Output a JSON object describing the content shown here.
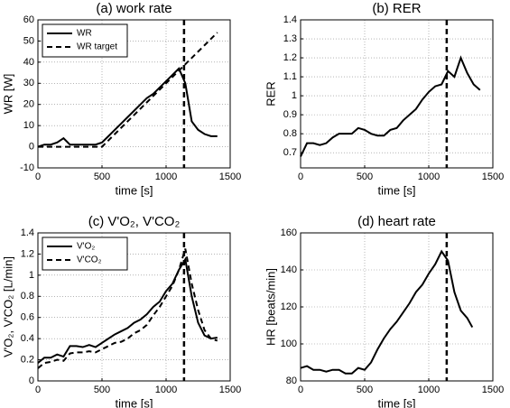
{
  "chart_data": [
    {
      "type": "line",
      "title": "(a)  work rate",
      "xlabel": "time [s]",
      "ylabel": "WR [W]",
      "x": [
        0,
        50,
        100,
        150,
        200,
        250,
        300,
        350,
        400,
        450,
        500,
        550,
        600,
        650,
        700,
        750,
        800,
        850,
        900,
        950,
        1000,
        1050,
        1100,
        1150,
        1200,
        1250,
        1300,
        1350,
        1400
      ],
      "series": [
        {
          "name": "WR",
          "color": "#000000",
          "dash": false,
          "values": [
            0,
            1,
            1,
            2,
            4,
            1,
            1,
            1,
            1,
            1,
            2,
            5,
            8,
            11,
            14,
            17,
            20,
            23,
            25,
            28,
            31,
            34,
            37,
            30,
            12,
            8,
            6,
            5,
            5
          ]
        },
        {
          "name": "WR target",
          "color": "#000000",
          "dash": true,
          "values": [
            0,
            0,
            0,
            0,
            0,
            0,
            0,
            0,
            0,
            0,
            0,
            3,
            6,
            9,
            12,
            15,
            18,
            21,
            24,
            27,
            30,
            33,
            36,
            39,
            42,
            45,
            48,
            51,
            54
          ]
        }
      ],
      "xlim": [
        0,
        1500
      ],
      "xticks": [
        0,
        500,
        1000,
        1500
      ],
      "ylim": [
        -10,
        60
      ],
      "yticks": [
        -10,
        0,
        10,
        20,
        30,
        40,
        50,
        60
      ],
      "grid": true,
      "legend": "upper left",
      "vline_x": 1140
    },
    {
      "type": "line",
      "title": "(b)  RER",
      "xlabel": "time [s]",
      "ylabel": "RER",
      "x": [
        0,
        50,
        100,
        150,
        200,
        250,
        300,
        350,
        400,
        450,
        500,
        550,
        600,
        650,
        700,
        750,
        800,
        850,
        900,
        950,
        1000,
        1050,
        1100,
        1150,
        1200,
        1250,
        1300,
        1350,
        1400
      ],
      "series": [
        {
          "name": "RER",
          "color": "#000000",
          "dash": false,
          "values": [
            0.68,
            0.75,
            0.75,
            0.74,
            0.75,
            0.78,
            0.8,
            0.8,
            0.8,
            0.83,
            0.82,
            0.8,
            0.79,
            0.79,
            0.82,
            0.83,
            0.87,
            0.9,
            0.93,
            0.98,
            1.02,
            1.05,
            1.06,
            1.13,
            1.1,
            1.2,
            1.12,
            1.06,
            1.03
          ]
        }
      ],
      "xlim": [
        0,
        1500
      ],
      "xticks": [
        0,
        500,
        1000,
        1500
      ],
      "ylim": [
        0.62,
        1.4
      ],
      "yticks": [
        0.7,
        0.8,
        0.9,
        1,
        1.1,
        1.2,
        1.3,
        1.4
      ],
      "grid": true,
      "vline_x": 1140
    },
    {
      "type": "line",
      "title": "(c)  V'O₂, V'CO₂",
      "xlabel": "time [s]",
      "ylabel": "V'O₂, V'CO₂ [L/min]",
      "x": [
        0,
        50,
        100,
        150,
        200,
        250,
        300,
        350,
        400,
        450,
        500,
        550,
        600,
        650,
        700,
        750,
        800,
        850,
        900,
        950,
        1000,
        1050,
        1100,
        1150,
        1200,
        1250,
        1300,
        1350,
        1400
      ],
      "series": [
        {
          "name": "V'O₂",
          "color": "#000000",
          "dash": false,
          "values": [
            0.17,
            0.22,
            0.22,
            0.25,
            0.23,
            0.33,
            0.33,
            0.32,
            0.34,
            0.32,
            0.36,
            0.4,
            0.44,
            0.47,
            0.5,
            0.55,
            0.58,
            0.63,
            0.7,
            0.75,
            0.85,
            0.92,
            1.05,
            1.15,
            0.8,
            0.55,
            0.43,
            0.4,
            0.41
          ]
        },
        {
          "name": "V'CO₂",
          "color": "#000000",
          "dash": true,
          "values": [
            0.12,
            0.17,
            0.18,
            0.2,
            0.19,
            0.26,
            0.27,
            0.27,
            0.28,
            0.27,
            0.3,
            0.33,
            0.36,
            0.37,
            0.4,
            0.45,
            0.48,
            0.53,
            0.62,
            0.7,
            0.8,
            0.9,
            1.05,
            1.25,
            0.92,
            0.67,
            0.48,
            0.4,
            0.38
          ]
        }
      ],
      "xlim": [
        0,
        1500
      ],
      "xticks": [
        0,
        500,
        1000,
        1500
      ],
      "ylim": [
        0,
        1.4
      ],
      "yticks": [
        0,
        0.2,
        0.4,
        0.6,
        0.8,
        1,
        1.2,
        1.4
      ],
      "grid": true,
      "legend": "upper left",
      "vline_x": 1140
    },
    {
      "type": "line",
      "title": "(d)  heart rate",
      "xlabel": "time [s]",
      "ylabel": "HR [beats/min]",
      "x": [
        0,
        50,
        100,
        150,
        200,
        250,
        300,
        350,
        400,
        450,
        500,
        550,
        600,
        650,
        700,
        750,
        800,
        850,
        900,
        950,
        1000,
        1050,
        1100,
        1150,
        1200,
        1250,
        1300,
        1340
      ],
      "series": [
        {
          "name": "HR",
          "color": "#000000",
          "dash": false,
          "values": [
            87,
            88,
            86,
            86,
            85,
            86,
            86,
            84,
            84,
            87,
            86,
            90,
            97,
            103,
            108,
            112,
            117,
            122,
            128,
            132,
            138,
            143,
            150,
            145,
            128,
            118,
            114,
            109
          ]
        }
      ],
      "xlim": [
        0,
        1500
      ],
      "xticks": [
        0,
        500,
        1000,
        1500
      ],
      "ylim": [
        80,
        160
      ],
      "yticks": [
        80,
        100,
        120,
        140,
        160
      ],
      "grid": true,
      "vline_x": 1140
    }
  ]
}
